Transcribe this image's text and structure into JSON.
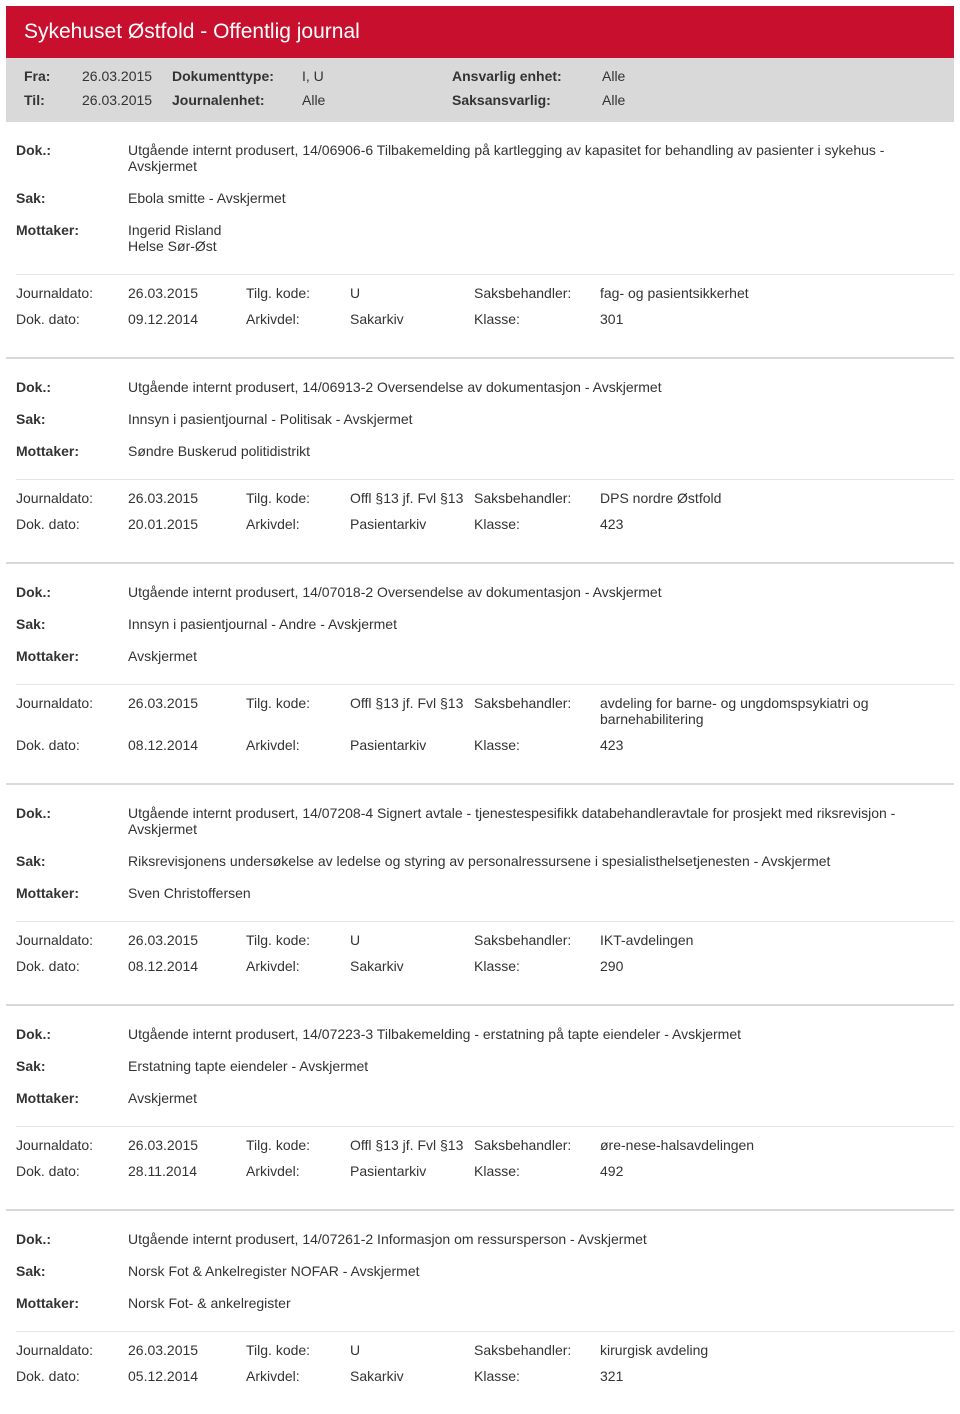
{
  "header": {
    "title": "Sykehuset Østfold - Offentlig journal"
  },
  "filter": {
    "fra_label": "Fra:",
    "fra_value": "26.03.2015",
    "til_label": "Til:",
    "til_value": "26.03.2015",
    "dokumenttype_label": "Dokumenttype:",
    "dokumenttype_value": "I, U",
    "journalenhet_label": "Journalenhet:",
    "journalenhet_value": "Alle",
    "ansvarlig_label": "Ansvarlig enhet:",
    "ansvarlig_value": "Alle",
    "saksansvarlig_label": "Saksansvarlig:",
    "saksansvarlig_value": "Alle"
  },
  "labels": {
    "dok": "Dok.:",
    "sak": "Sak:",
    "mottaker": "Mottaker:",
    "journaldato": "Journaldato:",
    "dokdato": "Dok. dato:",
    "tilgkode": "Tilg. kode:",
    "arkivdel": "Arkivdel:",
    "saksbehandler": "Saksbehandler:",
    "klasse": "Klasse:"
  },
  "entries": [
    {
      "dok": "Utgående internt produsert, 14/06906-6 Tilbakemelding på kartlegging av kapasitet for behandling av pasienter i sykehus - Avskjermet",
      "sak": "Ebola smitte - Avskjermet",
      "mottaker": "Ingerid Risland\nHelse Sør-Øst",
      "journaldato": "26.03.2015",
      "tilgkode": "U",
      "saksbehandler": "fag- og pasientsikkerhet",
      "dokdato": "09.12.2014",
      "arkivdel": "Sakarkiv",
      "klasse": "301"
    },
    {
      "dok": "Utgående internt produsert, 14/06913-2 Oversendelse av dokumentasjon - Avskjermet",
      "sak": "Innsyn i pasientjournal - Politisak - Avskjermet",
      "mottaker": "Søndre Buskerud politidistrikt",
      "journaldato": "26.03.2015",
      "tilgkode": "Offl §13 jf. Fvl §13",
      "saksbehandler": "DPS nordre Østfold",
      "dokdato": "20.01.2015",
      "arkivdel": "Pasientarkiv",
      "klasse": "423"
    },
    {
      "dok": "Utgående internt produsert, 14/07018-2 Oversendelse av dokumentasjon - Avskjermet",
      "sak": "Innsyn i pasientjournal - Andre - Avskjermet",
      "mottaker": "Avskjermet",
      "journaldato": "26.03.2015",
      "tilgkode": "Offl §13 jf. Fvl §13",
      "saksbehandler": "avdeling for barne- og ungdomspsykiatri og barnehabilitering",
      "dokdato": "08.12.2014",
      "arkivdel": "Pasientarkiv",
      "klasse": "423"
    },
    {
      "dok": "Utgående internt produsert, 14/07208-4 Signert avtale - tjenestespesifikk databehandleravtale for prosjekt med riksrevisjon - Avskjermet",
      "sak": "Riksrevisjonens undersøkelse av ledelse og styring av personalressursene i spesialisthelsetjenesten - Avskjermet",
      "mottaker": "Sven Christoffersen",
      "journaldato": "26.03.2015",
      "tilgkode": "U",
      "saksbehandler": "IKT-avdelingen",
      "dokdato": "08.12.2014",
      "arkivdel": "Sakarkiv",
      "klasse": "290"
    },
    {
      "dok": "Utgående internt produsert, 14/07223-3 Tilbakemelding - erstatning på tapte eiendeler - Avskjermet",
      "sak": "Erstatning tapte eiendeler - Avskjermet",
      "mottaker": "Avskjermet",
      "journaldato": "26.03.2015",
      "tilgkode": "Offl §13 jf. Fvl §13",
      "saksbehandler": "øre-nese-halsavdelingen",
      "dokdato": "28.11.2014",
      "arkivdel": "Pasientarkiv",
      "klasse": "492"
    },
    {
      "dok": "Utgående internt produsert, 14/07261-2 Informasjon om ressursperson - Avskjermet",
      "sak": "Norsk Fot & Ankelregister NOFAR - Avskjermet",
      "mottaker": "Norsk Fot- & ankelregister",
      "journaldato": "26.03.2015",
      "tilgkode": "U",
      "saksbehandler": "kirurgisk avdeling",
      "dokdato": "05.12.2014",
      "arkivdel": "Sakarkiv",
      "klasse": "321"
    }
  ]
}
